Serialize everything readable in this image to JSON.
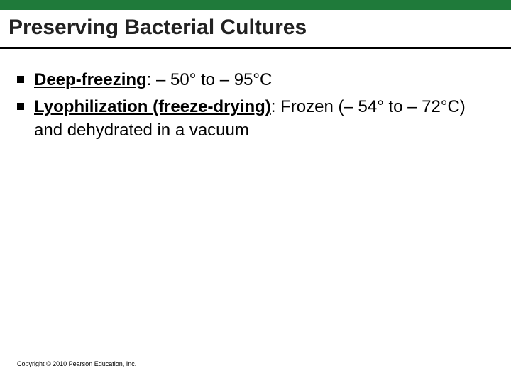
{
  "slide": {
    "title": "Preserving Bacterial Cultures",
    "top_bar_color": "#1f7a3a",
    "underline_color": "#000000",
    "background_color": "#ffffff",
    "title_fontsize": 30,
    "body_fontsize": 24,
    "bullets": [
      {
        "term": "Deep-freezing",
        "desc": ": – 50° to – 95°C"
      },
      {
        "term": "Lyophilization (freeze-drying)",
        "desc": ": Frozen (– 54° to – 72°C) and dehydrated in a vacuum"
      }
    ],
    "copyright": "Copyright © 2010 Pearson Education, Inc."
  }
}
